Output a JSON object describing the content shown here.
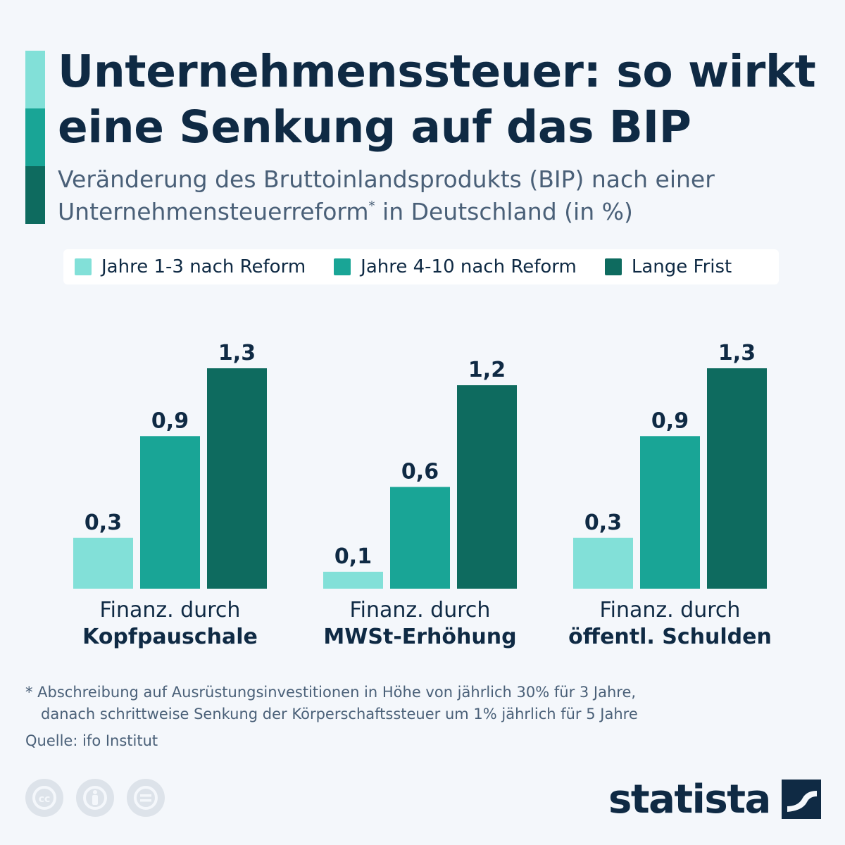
{
  "header": {
    "title": "Unternehmenssteuer: so wirkt eine Senkung auf das BIP",
    "subtitle_main": "Veränderung des Bruttoinlandsprodukts (BIP) nach einer Unternehmensteuerreform",
    "subtitle_mark": "*",
    "subtitle_tail": " in Deutschland (in %)"
  },
  "colors": {
    "series1": "#82e0d8",
    "series2": "#19a596",
    "series3": "#0e6b5f",
    "text_dark": "#0f2a44",
    "text_muted": "#4a6078",
    "background": "#f4f7fb"
  },
  "legend": {
    "items": [
      {
        "label": "Jahre 1-3 nach Reform"
      },
      {
        "label": "Jahre 4-10 nach Reform"
      },
      {
        "label": "Lange Frist"
      }
    ]
  },
  "chart_data": {
    "type": "bar",
    "title": "Unternehmenssteuer: so wirkt eine Senkung auf das BIP",
    "subtitle": "Veränderung des Bruttoinlandsprodukts (BIP) nach einer Unternehmensteuerreform* in Deutschland (in %)",
    "categories": [
      {
        "line1": "Finanz. durch",
        "line2": "Kopfpauschale"
      },
      {
        "line1": "Finanz. durch",
        "line2": "MWSt-Erhöhung"
      },
      {
        "line1": "Finanz. durch",
        "line2": "öffentl. Schulden"
      }
    ],
    "series": [
      {
        "name": "Jahre 1-3 nach Reform",
        "values": [
          0.3,
          0.1,
          0.3
        ],
        "labels": [
          "0,3",
          "0,1",
          "0,3"
        ]
      },
      {
        "name": "Jahre 4-10 nach Reform",
        "values": [
          0.9,
          0.6,
          0.9
        ],
        "labels": [
          "0,9",
          "0,6",
          "0,9"
        ]
      },
      {
        "name": "Lange Frist",
        "values": [
          1.3,
          1.2,
          1.3
        ],
        "labels": [
          "1,3",
          "1,2",
          "1,3"
        ]
      }
    ],
    "ylim": [
      0,
      1.3
    ],
    "grid": false,
    "legend_position": "top"
  },
  "footnote": {
    "line1": "* Abschreibung auf Ausrüstungsinvestitionen in Höhe von jährlich 30% für 3 Jahre,",
    "line2": "danach schrittweise Senkung der Körperschaftssteuer um 1% jährlich für 5 Jahre"
  },
  "source": "Quelle: ifo Institut",
  "footer": {
    "license_icons": [
      "cc-icon",
      "attribution-icon",
      "no-derivatives-icon"
    ],
    "logo_text": "statista"
  }
}
